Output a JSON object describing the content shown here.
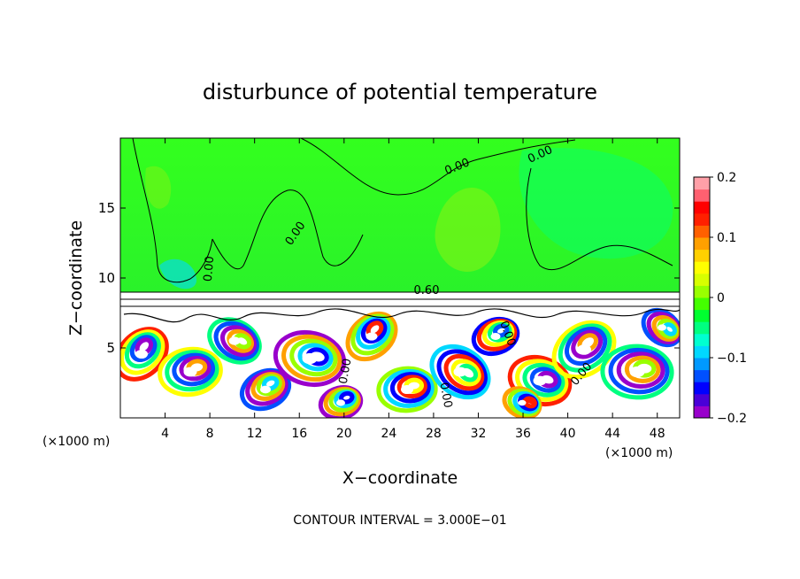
{
  "chart_data": {
    "type": "heatmap",
    "title": "disturbunce of potential temperature",
    "xlabel": "X−coordinate",
    "ylabel": "Z−coordinate",
    "x_unit_left": "(×1000 m)",
    "x_unit_right": "(×1000 m)",
    "xlim": [
      0,
      50
    ],
    "ylim": [
      0,
      20
    ],
    "x_ticks": [
      4,
      8,
      12,
      16,
      20,
      24,
      28,
      32,
      36,
      40,
      44,
      48
    ],
    "y_ticks": [
      5,
      10,
      15
    ],
    "colorbar": {
      "min": -0.2,
      "max": 0.2,
      "tick_values": [
        0.2,
        0.1,
        0,
        -0.1,
        -0.2
      ],
      "tick_labels": [
        "0.2",
        "0.1",
        "0",
        "−0.1",
        "−0.2"
      ],
      "colors": [
        "#9900cc",
        "#4a00d8",
        "#0000ff",
        "#0050ff",
        "#0099ff",
        "#00d8ff",
        "#00ffd0",
        "#00ff80",
        "#00ff30",
        "#44ff00",
        "#99ff00",
        "#d8ff00",
        "#ffff00",
        "#ffd000",
        "#ffa000",
        "#ff6000",
        "#ff2000",
        "#ff0000",
        "#ff6070",
        "#ffa0a8"
      ]
    },
    "contour_labels": [
      "0.00",
      "0.00",
      "0.00",
      "0.00",
      "0.60",
      "0.00",
      "0.00",
      "0.00",
      "0.00"
    ],
    "contour_interval": "CONTOUR INTERVAL = 3.000E−01",
    "upper_layer_value": 0.0,
    "upper_layer_top_km": 20,
    "interface_height_km": 8.5,
    "turbulent_layer_top_km": 8
  }
}
